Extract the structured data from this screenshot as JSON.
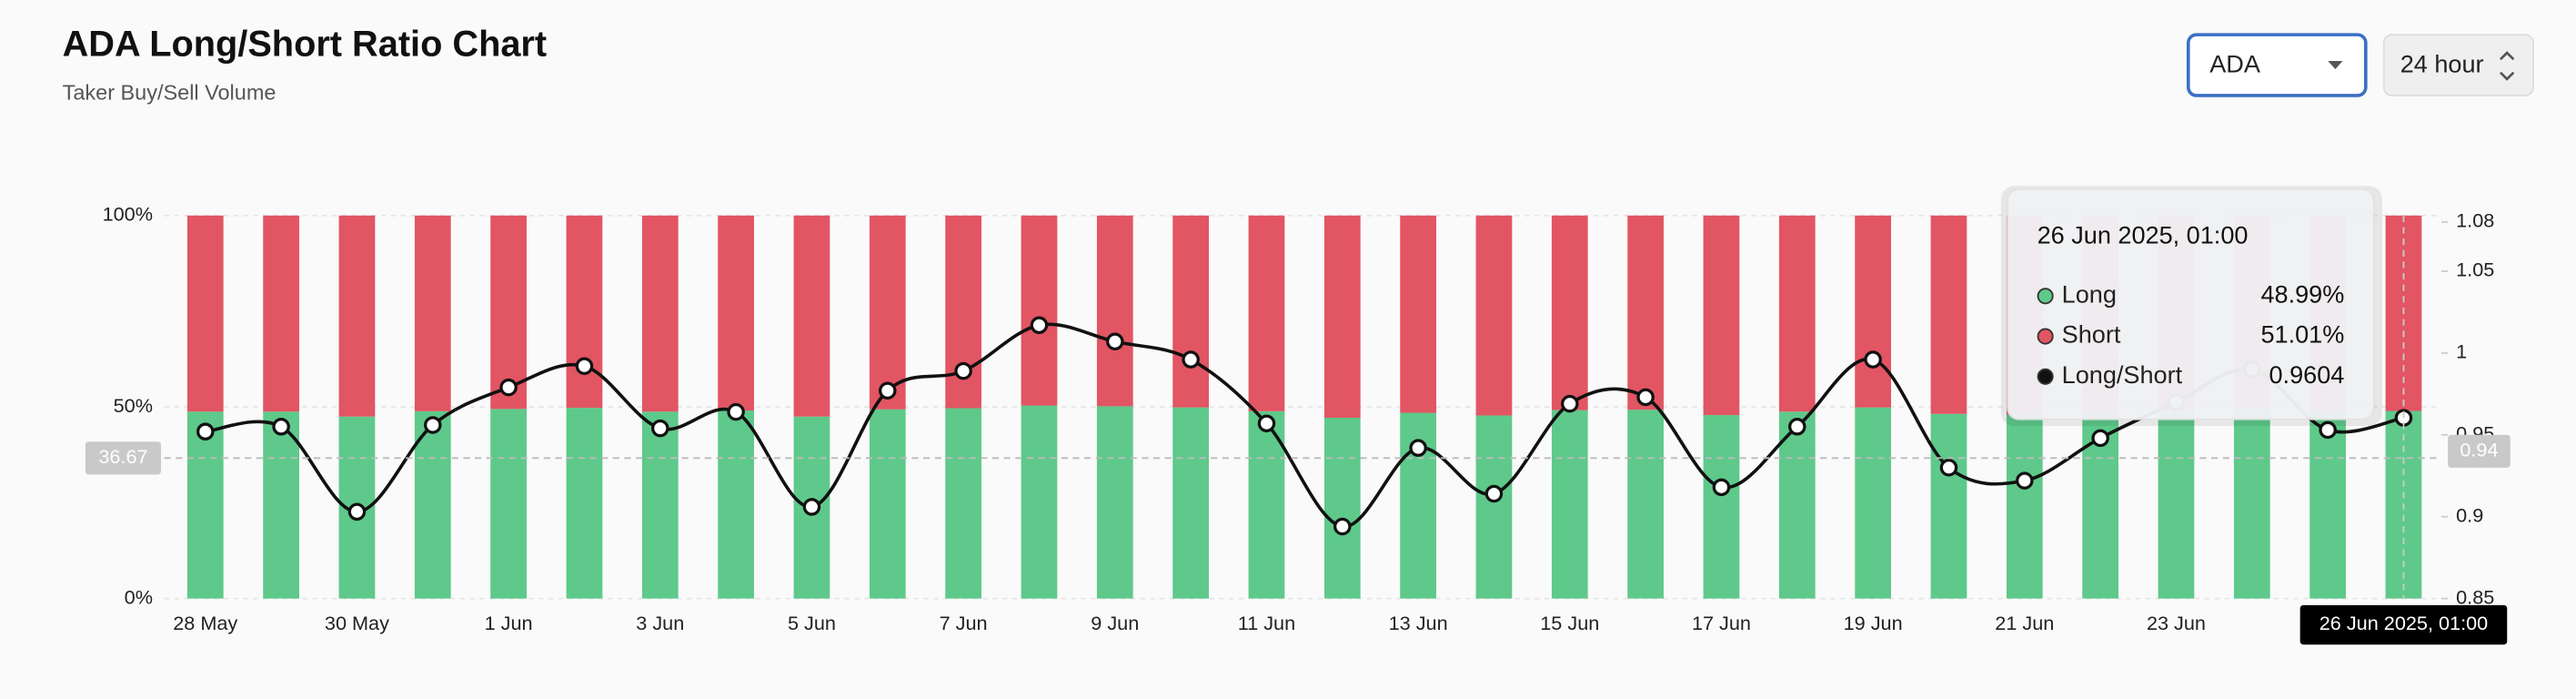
{
  "chart_data": {
    "type": "bar-line",
    "title": "ADA Long/Short Ratio Chart",
    "subtitle": "Taker Buy/Sell Volume",
    "controls": {
      "symbol": "ADA",
      "interval": "24 hour"
    },
    "categories": [
      "28 May",
      null,
      "30 May",
      null,
      "1 Jun",
      null,
      "3 Jun",
      null,
      "5 Jun",
      null,
      "7 Jun",
      null,
      "9 Jun",
      null,
      "11 Jun",
      null,
      "13 Jun",
      null,
      "15 Jun",
      null,
      "17 Jun",
      null,
      "19 Jun",
      null,
      "21 Jun",
      null,
      "23 Jun",
      null,
      null,
      null
    ],
    "series": [
      {
        "name": "Long",
        "color": "#5ec98a",
        "values": [
          48.8,
          48.8,
          47.5,
          48.9,
          49.5,
          49.8,
          48.8,
          49.1,
          47.5,
          49.4,
          49.7,
          50.4,
          50.2,
          49.9,
          48.9,
          47.2,
          48.5,
          47.8,
          49.2,
          49.3,
          47.9,
          48.8,
          49.9,
          48.2,
          48.0,
          48.7,
          49.2,
          49.7,
          48.8,
          48.99
        ]
      },
      {
        "name": "Short",
        "color": "#e25563",
        "values": [
          51.2,
          51.2,
          52.5,
          51.1,
          50.5,
          50.2,
          51.2,
          50.9,
          52.5,
          50.6,
          50.3,
          49.6,
          49.8,
          50.1,
          51.1,
          52.8,
          51.5,
          52.2,
          50.8,
          50.7,
          52.1,
          51.2,
          50.1,
          51.8,
          52.0,
          51.3,
          50.8,
          50.3,
          51.2,
          51.01
        ]
      },
      {
        "name": "Long/Short",
        "color": "#111111",
        "axis": "y2",
        "values": [
          0.952,
          0.955,
          0.903,
          0.956,
          0.979,
          0.992,
          0.954,
          0.964,
          0.906,
          0.977,
          0.989,
          1.017,
          1.007,
          0.996,
          0.957,
          0.894,
          0.942,
          0.914,
          0.969,
          0.973,
          0.918,
          0.955,
          0.996,
          0.93,
          0.922,
          0.948,
          0.97,
          0.99,
          0.953,
          0.9604
        ]
      }
    ],
    "ylim": [
      0,
      100
    ],
    "yticks": [
      {
        "value": 0,
        "label": "0%"
      },
      {
        "value": 50,
        "label": "50%"
      },
      {
        "value": 100,
        "label": "100%"
      }
    ],
    "y2lim": [
      0.85,
      1.084
    ],
    "y2ticks": [
      0.85,
      0.9,
      0.95,
      1.0,
      1.05,
      1.08
    ],
    "crosshair": {
      "y": 36.67,
      "y2": 0.94,
      "x_label": "26 Jun 2025, 01:00"
    },
    "tooltip": {
      "title": "26 Jun 2025, 01:00",
      "values": [
        {
          "value": 48.99,
          "label": "48.99%"
        },
        {
          "value": 51.01,
          "label": "51.01%"
        },
        0.9604
      ]
    }
  }
}
